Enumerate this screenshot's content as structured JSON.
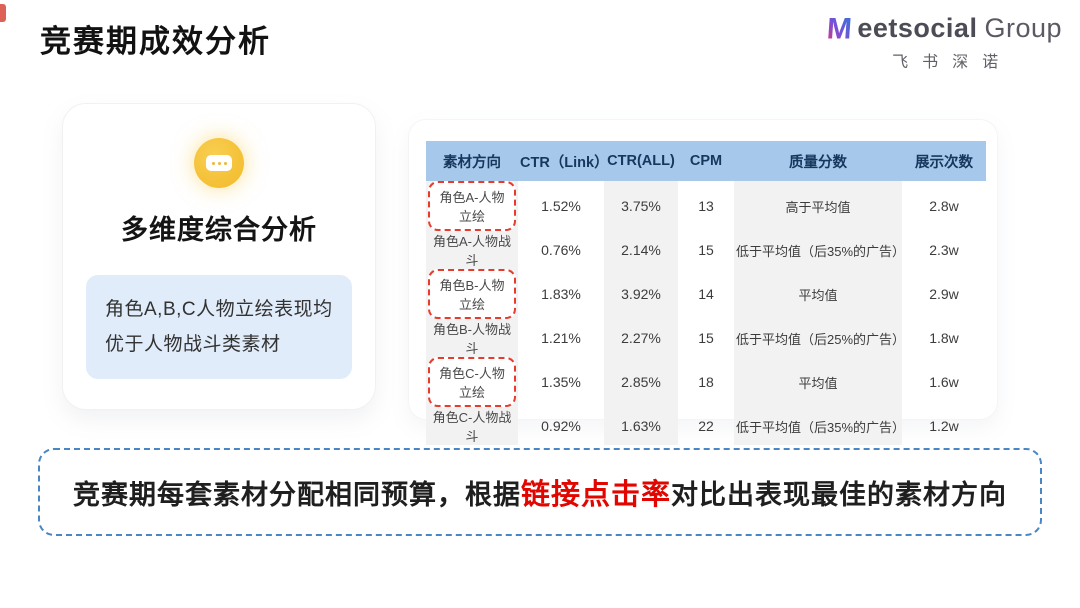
{
  "slide": {
    "title": "竞赛期成效分析"
  },
  "logo": {
    "brand": "eetsocial",
    "brand_suffix": "Group",
    "subtext": "飞书深诺",
    "m_icon": "meetsocial-m-logo"
  },
  "left_panel": {
    "icon": "chat-bubble-icon",
    "heading": "多维度综合分析",
    "note": "角色A,B,C人物立绘表现均优于人物战斗类素材"
  },
  "table": {
    "headers": [
      "素材方向",
      "CTR（Link）",
      "CTR(ALL)",
      "CPM",
      "质量分数",
      "展示次数"
    ],
    "rows": [
      {
        "direction": "角色A-人物立绘",
        "highlighted": true,
        "ctr_link": "1.52%",
        "ctr_all": "3.75%",
        "cpm": "13",
        "quality": "高于平均值",
        "impressions": "2.8w"
      },
      {
        "direction": "角色A-人物战斗",
        "highlighted": false,
        "ctr_link": "0.76%",
        "ctr_all": "2.14%",
        "cpm": "15",
        "quality": "低于平均值（后35%的广告）",
        "impressions": "2.3w"
      },
      {
        "direction": "角色B-人物立绘",
        "highlighted": true,
        "ctr_link": "1.83%",
        "ctr_all": "3.92%",
        "cpm": "14",
        "quality": "平均值",
        "impressions": "2.9w"
      },
      {
        "direction": "角色B-人物战斗",
        "highlighted": false,
        "ctr_link": "1.21%",
        "ctr_all": "2.27%",
        "cpm": "15",
        "quality": "低于平均值（后25%的广告）",
        "impressions": "1.8w"
      },
      {
        "direction": "角色C-人物立绘",
        "highlighted": true,
        "ctr_link": "1.35%",
        "ctr_all": "2.85%",
        "cpm": "18",
        "quality": "平均值",
        "impressions": "1.6w"
      },
      {
        "direction": "角色C-人物战斗",
        "highlighted": false,
        "ctr_link": "0.92%",
        "ctr_all": "1.63%",
        "cpm": "22",
        "quality": "低于平均值（后35%的广告）",
        "impressions": "1.2w"
      }
    ]
  },
  "banner": {
    "text_before": "竞赛期每套素材分配相同预算，根据",
    "highlight": "链接点击率",
    "text_after": "对比出表现最佳的素材方向"
  },
  "colors": {
    "table_header_bg": "#a6c9eb",
    "table_header_text": "#17375d",
    "column_stripe": "#f2f2f2",
    "highlight_dashed_red": "#e73b2d",
    "banner_border_blue": "#4a86c4",
    "banner_red_text": "#e10600",
    "icon_yellow": "#f2b928",
    "note_bg": "#e1ecfa"
  }
}
